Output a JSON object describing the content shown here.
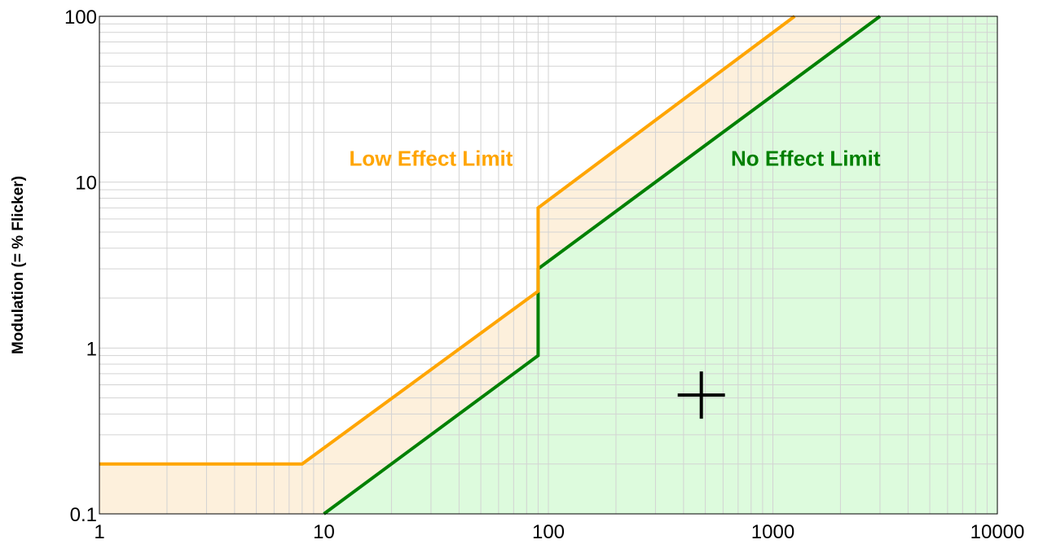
{
  "chart_data": {
    "type": "line",
    "title": "",
    "xlabel": "",
    "ylabel": "Modulation (= % Flicker)",
    "xscale": "log",
    "yscale": "log",
    "xlim": [
      1,
      10000
    ],
    "ylim": [
      0.1,
      100
    ],
    "grid": true,
    "x_ticks": [
      1,
      10,
      100,
      1000,
      10000
    ],
    "x_tick_labels": [
      "1",
      "10",
      "100",
      "1000",
      "10000"
    ],
    "y_ticks": [
      0.1,
      1,
      10,
      100
    ],
    "y_tick_labels": [
      "0.1",
      "1",
      "10",
      "100"
    ],
    "colors": {
      "low_effect_line": "#FFA500",
      "low_effect_fill": "#FDF0DC",
      "no_effect_line": "#008000",
      "no_effect_fill": "#DDFBDD",
      "grid": "#D3D3D3",
      "marker": "#000000"
    },
    "series": [
      {
        "name": "Low Effect Limit",
        "x": [
          1,
          8,
          90,
          90,
          1250
        ],
        "y": [
          0.2,
          0.2,
          2.2,
          7,
          100
        ]
      },
      {
        "name": "No Effect Limit",
        "x": [
          10,
          90,
          90,
          3000
        ],
        "y": [
          0.1,
          0.9,
          3,
          100
        ]
      }
    ],
    "annotations": [
      {
        "text": "Low Effect Limit",
        "x": 30,
        "y": 10,
        "color": "#FFA500"
      },
      {
        "text": "No Effect Limit",
        "x": 1400,
        "y": 10,
        "color": "#008000"
      }
    ],
    "marker": {
      "shape": "plus",
      "x": 480,
      "y": 0.52
    }
  }
}
